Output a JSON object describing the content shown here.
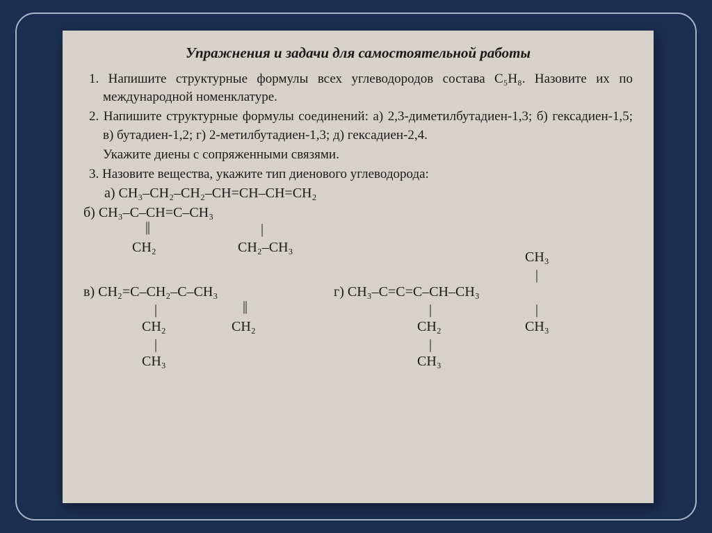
{
  "slide": {
    "bg_color": "#1a2e4f",
    "frame_color": "#a8b5c8",
    "paper_color": "#d6d1ca"
  },
  "title": "Упражнения и задачи для самостоятельной работы",
  "items": {
    "q1": "1. Напишите структурные формулы всех углеводородов состава C₅H₈. Назовите их по международной номенклатуре.",
    "q2": "2. Напишите структурные формулы соединений: а) 2,3-диметил­бутадиен-1,3; б) гексадиен-1,5; в) бутадиен-1,2; г) 2-метилбу­тадиен-1,3; д) гексадиен-2,4.",
    "q2tail": "Укажите диены с сопряженными связями.",
    "q3": "3. Назовите вещества, укажите тип диенового углеводорода:"
  },
  "chem": {
    "a": "а) CH₃–CH₂–CH₂–CH=CH–CH=CH₂",
    "b": {
      "main": "б) CH₃–C–CH=C–CH₃",
      "sub_left": "CH₂",
      "sub_right": "CH₂–CH₃"
    },
    "c": {
      "main": "в) CH₂=C–CH₂–C–CH₃",
      "sub_left": "CH₂",
      "sub_right": "CH₂",
      "sub_left2": "CH₃"
    },
    "d": {
      "top": "CH₃",
      "main": "г) CH₃–C=C=C–CH–CH₃",
      "sub_left": "CH₂",
      "sub_right": "CH₃",
      "sub_left2": "CH₃"
    }
  }
}
